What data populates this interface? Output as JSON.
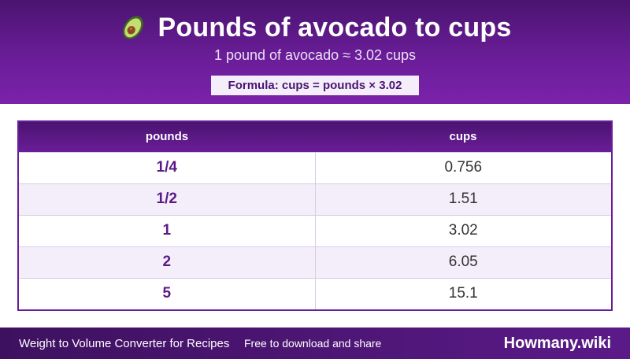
{
  "header": {
    "icon": "avocado-icon",
    "title": "Pounds of avocado to cups",
    "subtitle": "1 pound of avocado ≈ 3.02 cups",
    "formula": "Formula: cups = pounds × 3.02"
  },
  "table": {
    "headers": [
      "pounds",
      "cups"
    ],
    "rows": [
      {
        "pounds": "1/4",
        "cups": "0.756"
      },
      {
        "pounds": "1/2",
        "cups": "1.51"
      },
      {
        "pounds": "1",
        "cups": "3.02"
      },
      {
        "pounds": "2",
        "cups": "6.05"
      },
      {
        "pounds": "5",
        "cups": "15.1"
      }
    ]
  },
  "footer": {
    "left": "Weight to Volume Converter for Recipes",
    "mid": "Free to download and share",
    "brand": "Howmany.wiki"
  },
  "colors": {
    "primary": "#6a1d98",
    "dark": "#4a1470",
    "row_alt": "#f3eefa"
  }
}
